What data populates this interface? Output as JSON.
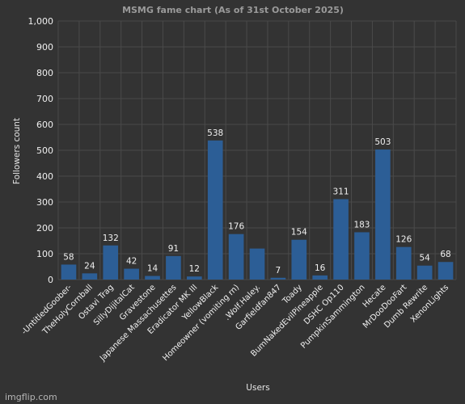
{
  "chart_data": {
    "type": "bar",
    "title": "MSMG fame chart (As of 31st October 2025)",
    "xlabel": "Users",
    "ylabel": "Followers count",
    "ylim": [
      0,
      1000
    ],
    "yticks": [
      "0",
      "100",
      "200",
      "300",
      "400",
      "500",
      "600",
      "700",
      "800",
      "900",
      "1,000"
    ],
    "ytick_values": [
      0,
      100,
      200,
      300,
      400,
      500,
      600,
      700,
      800,
      900,
      1000
    ],
    "grid": true,
    "bar_color": "#2c5e96",
    "background_color": "#333333",
    "categories": [
      "-UntitledGoober-",
      "TheHolyCornball",
      "Ostavi Trag",
      "SillyDijitalCat",
      "Gravestone",
      "Japanese Massachusettes",
      "Eradicator MK III",
      "YellowBlack",
      "Homeowner (vomiting rn)",
      ".Wolf.Haley.",
      "Garfieldfan847",
      "Toady",
      "BumNakedEvilPineapple",
      "DSHC Op110",
      "PumpkinSammington",
      "Hecate",
      "MrDooDooFart",
      "Dumb Rewrite",
      "XenonLights"
    ],
    "values": [
      58,
      24,
      132,
      42,
      14,
      91,
      12,
      538,
      176,
      120,
      7,
      154,
      16,
      311,
      183,
      503,
      126,
      54,
      68
    ],
    "data_labels": [
      "58",
      "24",
      "132",
      "42",
      "14",
      "91",
      "12",
      "538",
      "176",
      "",
      "7",
      "154",
      "16",
      "311",
      "183",
      "503",
      "126",
      "54",
      "68"
    ]
  },
  "watermark": "imgflip.com"
}
